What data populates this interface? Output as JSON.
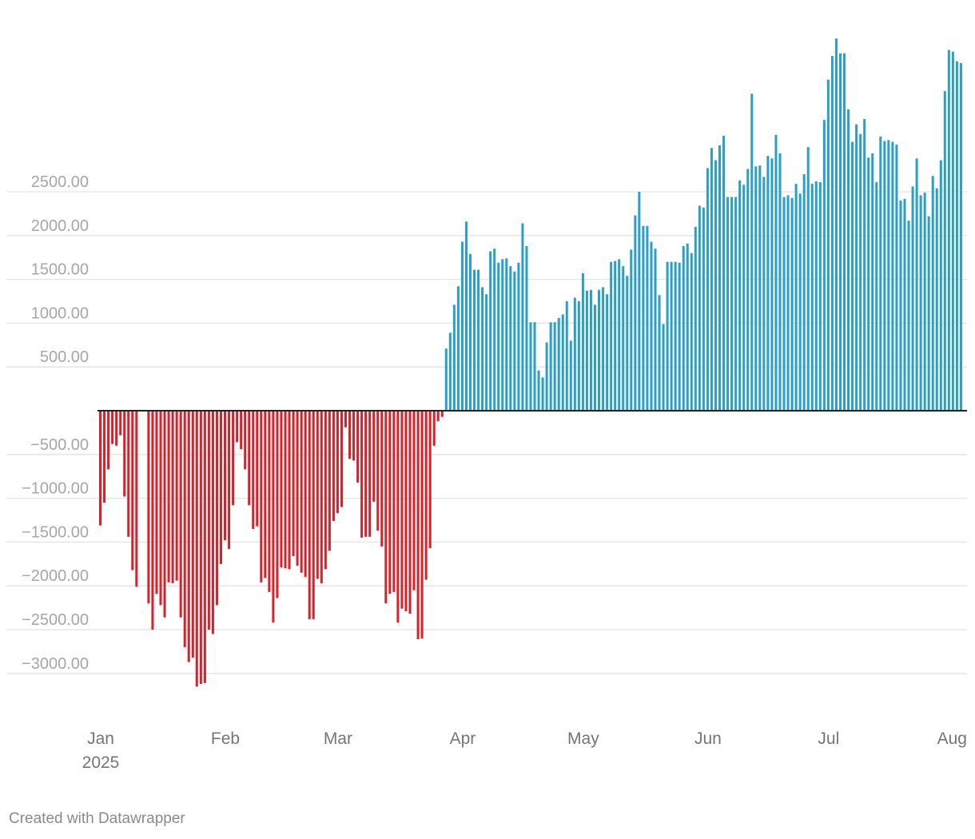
{
  "footer": "Created with Datawrapper",
  "colors": {
    "positive": "#2aa0c9",
    "negative": "#d5222b",
    "axis": "#222222",
    "grid": "#e3e3e3"
  },
  "chart_data": {
    "type": "bar",
    "title": "",
    "xlabel": "",
    "ylabel": "",
    "x_start": "2025-01-01",
    "x_end": "2025-08-05",
    "ylim": [
      -3600,
      4300
    ],
    "y_ticks": [
      {
        "value": 2500,
        "label": "2500.00"
      },
      {
        "value": 2000,
        "label": "2000.00"
      },
      {
        "value": 1500,
        "label": "1500.00"
      },
      {
        "value": 1000,
        "label": "1000.00"
      },
      {
        "value": 500,
        "label": "500.00"
      },
      {
        "value": -500,
        "label": "−500.00"
      },
      {
        "value": -1000,
        "label": "−1000.00"
      },
      {
        "value": -1500,
        "label": "−1500.00"
      },
      {
        "value": -2000,
        "label": "−2000.00"
      },
      {
        "value": -2500,
        "label": "−2500.00"
      },
      {
        "value": -3000,
        "label": "−3000.00"
      }
    ],
    "x_ticks": [
      {
        "date": "2025-01-01",
        "label": "Jan",
        "sublabel": "2025"
      },
      {
        "date": "2025-02-01",
        "label": "Feb"
      },
      {
        "date": "2025-03-01",
        "label": "Mar"
      },
      {
        "date": "2025-04-01",
        "label": "Apr"
      },
      {
        "date": "2025-05-01",
        "label": "May"
      },
      {
        "date": "2025-06-01",
        "label": "Jun"
      },
      {
        "date": "2025-07-01",
        "label": "Jul"
      },
      {
        "date": "2025-08-01",
        "label": "Aug"
      }
    ],
    "values": [
      -1310,
      -1050,
      -670,
      -380,
      -400,
      -280,
      -980,
      -1440,
      -1820,
      -2010,
      0,
      0,
      -2200,
      -2500,
      -2090,
      -2220,
      -2360,
      -1960,
      -1970,
      -1940,
      -2360,
      -2700,
      -2870,
      -2820,
      -3150,
      -3120,
      -3110,
      -2500,
      -2550,
      -2220,
      -1750,
      -1480,
      -1580,
      -1080,
      -360,
      -440,
      -670,
      -1080,
      -1350,
      -1320,
      -1960,
      -1910,
      -2070,
      -2420,
      -2140,
      -1790,
      -1800,
      -1810,
      -1660,
      -1770,
      -1850,
      -1900,
      -2380,
      -2380,
      -1920,
      -1970,
      -1810,
      -1600,
      -1260,
      -1170,
      -1100,
      -190,
      -550,
      -570,
      -820,
      -1450,
      -1440,
      -1440,
      -1040,
      -1370,
      -1550,
      -2200,
      -2090,
      -2070,
      -2420,
      -2260,
      -2290,
      -2320,
      -2050,
      -2610,
      -2600,
      -1930,
      -1570,
      -400,
      -120,
      -70,
      710,
      890,
      1210,
      1420,
      1930,
      2160,
      1790,
      1610,
      1610,
      1410,
      1330,
      1820,
      1850,
      1690,
      1730,
      1740,
      1650,
      1590,
      1690,
      2140,
      1880,
      1010,
      1010,
      460,
      380,
      780,
      1010,
      1010,
      1060,
      1100,
      1250,
      800,
      1290,
      1250,
      1570,
      1370,
      1380,
      1210,
      1380,
      1410,
      1330,
      1700,
      1710,
      1730,
      1650,
      1540,
      1840,
      2230,
      2500,
      2110,
      2110,
      1930,
      1850,
      1320,
      990,
      1700,
      1700,
      1700,
      1690,
      1880,
      1910,
      1800,
      2100,
      2340,
      2320,
      2770,
      3000,
      2860,
      3030,
      3140,
      2440,
      2440,
      2440,
      2630,
      2580,
      2760,
      3620,
      2790,
      2800,
      2670,
      2910,
      2880,
      3150,
      2940,
      2440,
      2460,
      2430,
      2590,
      2480,
      2700,
      3010,
      2590,
      2620,
      2610,
      3320,
      3780,
      4050,
      4250,
      4080,
      4080,
      3440,
      3070,
      3270,
      3160,
      3330,
      2890,
      2940,
      2610,
      3130,
      3080,
      3090,
      3070,
      3040,
      2400,
      2420,
      2170,
      2560,
      2880,
      2460,
      2490,
      2220,
      2680,
      2540,
      2860,
      3650,
      4120,
      4100,
      3990,
      3970
    ]
  }
}
